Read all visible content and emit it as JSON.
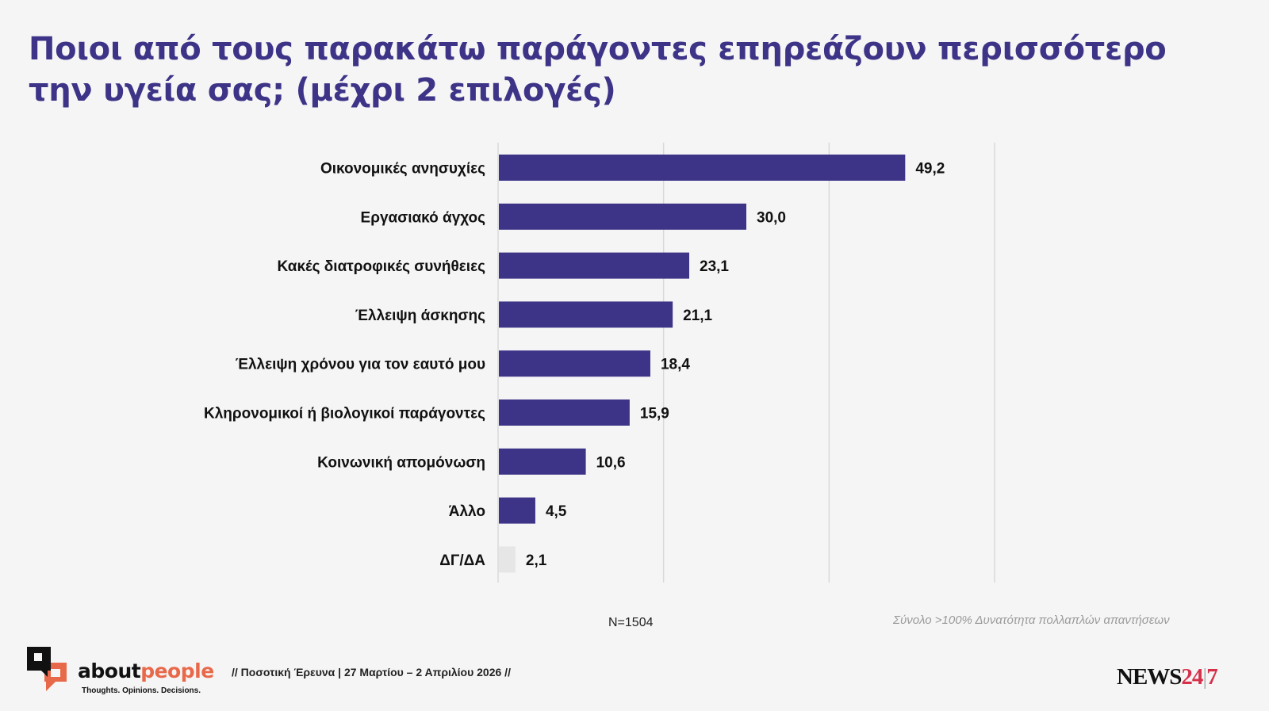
{
  "chart_data": {
    "type": "bar",
    "orientation": "horizontal",
    "title": "Ποιοι από τους παρακάτω παράγοντες επηρεάζουν περισσότερο την υγεία σας; (μέχρι 2 επιλογές)",
    "categories": [
      "Οικονομικές ανησυχίες",
      "Εργασιακό άγχος",
      "Κακές διατροφικές συνήθειες",
      "Έλλειψη άσκησης",
      "Έλλειψη χρόνου για τον εαυτό μου",
      "Κληρονομικοί ή βιολογικοί παράγοντες",
      "Κοινωνική απομόνωση",
      "Άλλο",
      "ΔΓ/ΔΑ"
    ],
    "values": [
      49.2,
      30.0,
      23.1,
      21.1,
      18.4,
      15.9,
      10.6,
      4.5,
      2.1
    ],
    "value_labels": [
      "49,2",
      "30,0",
      "23,1",
      "21,1",
      "18,4",
      "15,9",
      "10,6",
      "4,5",
      "2,1"
    ],
    "bar_colors": [
      "#3d3488",
      "#3d3488",
      "#3d3488",
      "#3d3488",
      "#3d3488",
      "#3d3488",
      "#3d3488",
      "#3d3488",
      "#e6e6e6"
    ],
    "xlim": [
      0,
      60
    ],
    "gridlines": [
      0,
      20,
      40,
      60
    ],
    "grid": true,
    "xlabel": "",
    "ylabel": "",
    "legend": "none"
  },
  "title_line1": "Ποιοι από τους παρακάτω παράγοντες επηρεάζουν περισσότερο",
  "title_line2": "την υγεία σας; (μέχρι 2 επιλογές)",
  "sample_size": "N=1504",
  "note": "Σύνολο >100% Δυνατότητα πολλαπλών απαντήσεων",
  "footer": {
    "logo_part1": "about",
    "logo_part2": "people",
    "logo_tagline": "Thoughts. Opinions. Decisions.",
    "survey_info": "// Ποσοτική Έρευνα | 27 Μαρτίου – 2 Απριλίου 2026 //",
    "news_part1": "NEWS",
    "news_part2": "24",
    "news_sep": "|",
    "news_part3": "7"
  },
  "colors": {
    "title": "#3d3488",
    "bar": "#3d3488",
    "bar_dkna": "#e6e6e6",
    "brand_orange": "#e8694a",
    "news_red": "#d6304b"
  }
}
